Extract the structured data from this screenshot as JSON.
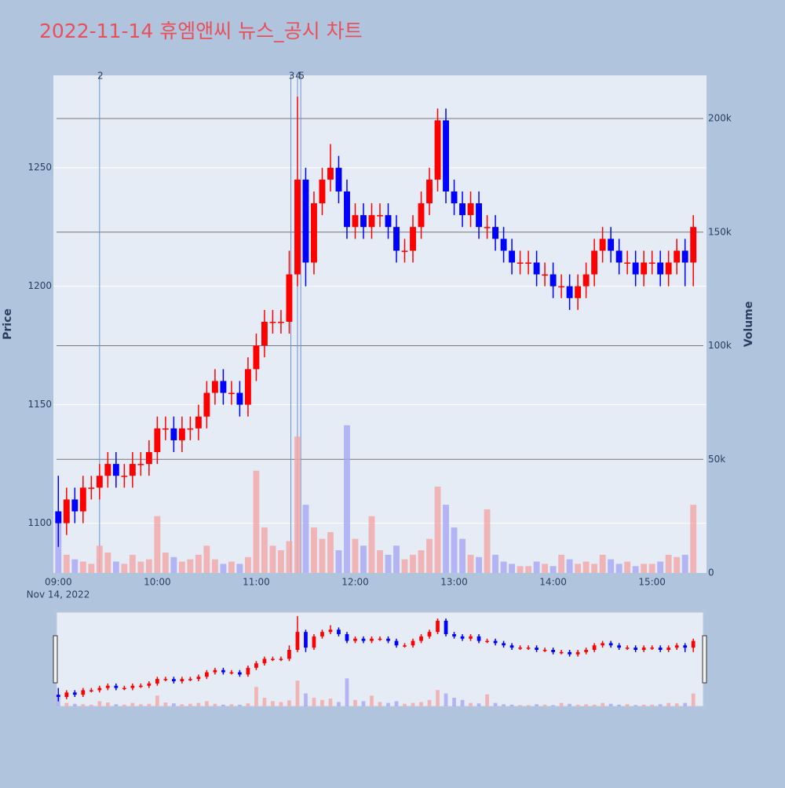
{
  "chart_data": {
    "type": "candlestick",
    "title": "2022-11-14 휴엠앤씨 뉴스_공시 차트",
    "y_label": "Price",
    "y2_label": "Volume",
    "x_sublabel": "Nov 14, 2022",
    "up_color": "#ff0000",
    "down_color": "#0000ff",
    "volume_up_color": "#f4a6a6",
    "volume_down_color": "#a6a6f4",
    "x": [
      "09:00",
      "09:05",
      "09:10",
      "09:15",
      "09:20",
      "09:25",
      "09:30",
      "09:35",
      "09:40",
      "09:45",
      "09:50",
      "09:55",
      "10:00",
      "10:05",
      "10:10",
      "10:15",
      "10:20",
      "10:25",
      "10:30",
      "10:35",
      "10:40",
      "10:45",
      "10:50",
      "10:55",
      "11:00",
      "11:05",
      "11:10",
      "11:15",
      "11:20",
      "11:25",
      "11:30",
      "11:35",
      "11:40",
      "11:45",
      "11:50",
      "11:55",
      "12:00",
      "12:05",
      "12:10",
      "12:15",
      "12:20",
      "12:25",
      "12:30",
      "12:35",
      "12:40",
      "12:45",
      "12:50",
      "12:55",
      "13:00",
      "13:05",
      "13:10",
      "13:15",
      "13:20",
      "13:25",
      "13:30",
      "13:35",
      "13:40",
      "13:45",
      "13:50",
      "13:55",
      "14:00",
      "14:05",
      "14:10",
      "14:15",
      "14:20",
      "14:25",
      "14:30",
      "14:35",
      "14:40",
      "14:45",
      "14:50",
      "14:55",
      "15:00",
      "15:05",
      "15:10",
      "15:15",
      "15:20",
      "15:25"
    ],
    "open": [
      1105,
      1100,
      1110,
      1105,
      1115,
      1115,
      1120,
      1125,
      1120,
      1120,
      1125,
      1125,
      1130,
      1140,
      1140,
      1135,
      1140,
      1140,
      1145,
      1155,
      1160,
      1155,
      1155,
      1150,
      1165,
      1175,
      1185,
      1185,
      1185,
      1205,
      1245,
      1210,
      1235,
      1245,
      1250,
      1240,
      1225,
      1230,
      1225,
      1230,
      1230,
      1225,
      1215,
      1215,
      1225,
      1235,
      1245,
      1270,
      1240,
      1235,
      1230,
      1235,
      1225,
      1225,
      1220,
      1215,
      1210,
      1210,
      1210,
      1205,
      1205,
      1200,
      1200,
      1195,
      1200,
      1205,
      1215,
      1220,
      1215,
      1210,
      1210,
      1205,
      1210,
      1210,
      1205,
      1210,
      1215,
      1210
    ],
    "high": [
      1120,
      1115,
      1115,
      1120,
      1120,
      1125,
      1130,
      1130,
      1125,
      1130,
      1130,
      1135,
      1145,
      1145,
      1145,
      1145,
      1145,
      1150,
      1160,
      1165,
      1165,
      1160,
      1160,
      1170,
      1180,
      1190,
      1190,
      1190,
      1215,
      1280,
      1250,
      1240,
      1250,
      1260,
      1255,
      1245,
      1235,
      1235,
      1235,
      1235,
      1235,
      1230,
      1220,
      1230,
      1240,
      1250,
      1275,
      1275,
      1245,
      1240,
      1240,
      1240,
      1230,
      1230,
      1225,
      1220,
      1215,
      1215,
      1215,
      1210,
      1210,
      1205,
      1205,
      1205,
      1210,
      1220,
      1225,
      1225,
      1220,
      1215,
      1215,
      1215,
      1215,
      1215,
      1215,
      1220,
      1220,
      1230
    ],
    "low": [
      1090,
      1095,
      1100,
      1100,
      1110,
      1110,
      1115,
      1115,
      1115,
      1115,
      1120,
      1120,
      1125,
      1135,
      1130,
      1130,
      1135,
      1135,
      1140,
      1150,
      1150,
      1150,
      1145,
      1145,
      1160,
      1170,
      1180,
      1180,
      1180,
      1200,
      1200,
      1205,
      1230,
      1240,
      1235,
      1220,
      1220,
      1220,
      1220,
      1225,
      1220,
      1210,
      1210,
      1210,
      1220,
      1230,
      1240,
      1235,
      1230,
      1225,
      1225,
      1220,
      1220,
      1215,
      1210,
      1205,
      1205,
      1205,
      1200,
      1200,
      1195,
      1195,
      1190,
      1190,
      1195,
      1200,
      1210,
      1210,
      1205,
      1205,
      1200,
      1200,
      1205,
      1200,
      1200,
      1205,
      1200,
      1200
    ],
    "close": [
      1100,
      1110,
      1105,
      1115,
      1115,
      1120,
      1125,
      1120,
      1120,
      1125,
      1125,
      1130,
      1140,
      1140,
      1135,
      1140,
      1140,
      1145,
      1155,
      1160,
      1155,
      1155,
      1150,
      1165,
      1175,
      1185,
      1185,
      1185,
      1205,
      1245,
      1210,
      1235,
      1245,
      1250,
      1240,
      1225,
      1230,
      1225,
      1230,
      1230,
      1225,
      1215,
      1215,
      1225,
      1235,
      1245,
      1270,
      1240,
      1235,
      1230,
      1235,
      1225,
      1225,
      1220,
      1215,
      1210,
      1210,
      1210,
      1205,
      1205,
      1200,
      1200,
      1195,
      1200,
      1205,
      1215,
      1220,
      1215,
      1210,
      1210,
      1205,
      1210,
      1210,
      1205,
      1210,
      1215,
      1210,
      1225
    ],
    "volume": [
      25000,
      8000,
      6000,
      5000,
      4000,
      12000,
      9000,
      5000,
      4000,
      8000,
      5000,
      6000,
      25000,
      9000,
      7000,
      5000,
      6000,
      8000,
      12000,
      6000,
      4000,
      5000,
      4000,
      7000,
      45000,
      20000,
      12000,
      10000,
      14000,
      60000,
      30000,
      20000,
      15000,
      18000,
      10000,
      65000,
      15000,
      12000,
      25000,
      10000,
      8000,
      12000,
      6000,
      8000,
      10000,
      15000,
      38000,
      30000,
      20000,
      15000,
      8000,
      7000,
      28000,
      8000,
      5000,
      4000,
      3000,
      3000,
      5000,
      4000,
      3000,
      8000,
      6000,
      4000,
      5000,
      4000,
      8000,
      6000,
      4000,
      5000,
      3000,
      4000,
      4000,
      5000,
      8000,
      7000,
      8000,
      30000
    ],
    "annotations": [
      {
        "x": "09:25",
        "label": "2"
      },
      {
        "x": "11:21",
        "label": "3"
      },
      {
        "x": "11:25",
        "label": "4"
      },
      {
        "x": "11:27",
        "label": "5"
      }
    ],
    "xlim": [
      "08:57",
      "15:33"
    ],
    "xticks": [
      "09:00",
      "10:00",
      "11:00",
      "12:00",
      "13:00",
      "14:00",
      "15:00"
    ],
    "ylim": [
      1079,
      1289
    ],
    "yticks": [
      1100,
      1150,
      1200,
      1250
    ],
    "y2lim": [
      0,
      219000
    ],
    "y2ticks": [
      0,
      {
        "value": 50000,
        "label": "50k"
      },
      {
        "value": 100000,
        "label": "100k"
      },
      {
        "value": 150000,
        "label": "150k"
      },
      {
        "value": 200000,
        "label": "200k"
      }
    ]
  }
}
